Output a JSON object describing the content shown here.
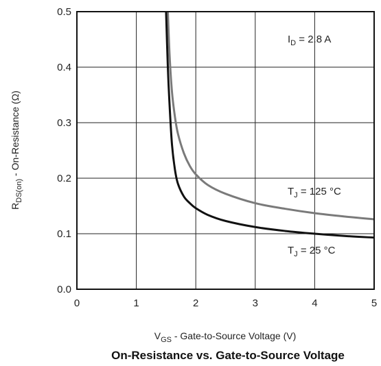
{
  "chart_data": {
    "type": "line",
    "title": "On-Resistance vs. Gate-to-Source Voltage",
    "xlabel": {
      "main": "V",
      "sub": "GS",
      "rest": " - Gate-to-Source Voltage (V)"
    },
    "ylabel": {
      "main": "R",
      "sub": "DS(on)",
      "rest": " - On-Resistance (Ω)"
    },
    "xlim": [
      0,
      5
    ],
    "ylim": [
      0.0,
      0.5
    ],
    "grid": true,
    "x_ticks": [
      "0",
      "1",
      "2",
      "3",
      "4",
      "5"
    ],
    "y_ticks": [
      "0.0",
      "0.1",
      "0.2",
      "0.3",
      "0.4",
      "0.5"
    ],
    "annotations": [
      {
        "id": "id-label",
        "main": "I",
        "sub": "D",
        "rest": " = 2.8 A"
      }
    ],
    "series": [
      {
        "name": "T_J = 125 °C",
        "label_main": "T",
        "label_sub": "J",
        "label_rest": " = 125 °C",
        "color": "#7a7a7a",
        "x": [
          1.53,
          1.56,
          1.6,
          1.65,
          1.7,
          1.8,
          1.9,
          2.0,
          2.2,
          2.5,
          3.0,
          3.5,
          4.0,
          4.5,
          5.0
        ],
        "y": [
          0.5,
          0.42,
          0.355,
          0.31,
          0.28,
          0.245,
          0.222,
          0.207,
          0.188,
          0.172,
          0.155,
          0.145,
          0.137,
          0.131,
          0.126
        ]
      },
      {
        "name": "T_J = 25 °C",
        "label_main": "T",
        "label_sub": "J",
        "label_rest": " = 25 °C",
        "color": "#111111",
        "x": [
          1.5,
          1.53,
          1.56,
          1.6,
          1.65,
          1.7,
          1.8,
          1.9,
          2.0,
          2.2,
          2.5,
          3.0,
          3.5,
          4.0,
          4.5,
          5.0
        ],
        "y": [
          0.5,
          0.4,
          0.33,
          0.26,
          0.215,
          0.19,
          0.167,
          0.155,
          0.146,
          0.134,
          0.123,
          0.112,
          0.105,
          0.1,
          0.096,
          0.093
        ]
      }
    ]
  }
}
